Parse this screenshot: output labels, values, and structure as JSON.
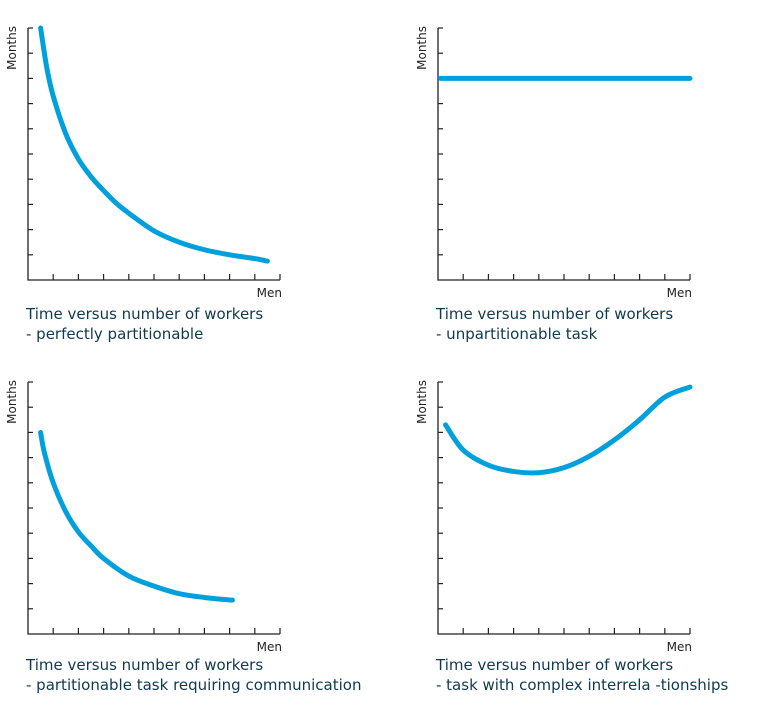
{
  "colors": {
    "curve": "#00a0dc",
    "caption": "#0f3a4f",
    "axis": "#222222"
  },
  "chart_data": [
    {
      "type": "line",
      "title": "Time versus number of workers",
      "subtitle": "- perfectly partitionable",
      "xlabel": "Men",
      "ylabel": "Months",
      "xlim": [
        0,
        10
      ],
      "ylim": [
        0,
        10
      ],
      "x_ticks": 10,
      "y_ticks": 10,
      "series": [
        {
          "x": [
            0.5,
            0.75,
            1,
            1.5,
            2,
            2.5,
            3,
            3.5,
            4,
            5,
            6,
            7,
            8,
            9,
            9.5
          ],
          "y": [
            10,
            8.4,
            7.3,
            5.8,
            4.8,
            4.1,
            3.55,
            3.05,
            2.65,
            1.95,
            1.5,
            1.2,
            1.0,
            0.85,
            0.75
          ]
        }
      ]
    },
    {
      "type": "line",
      "title": "Time versus number of workers",
      "subtitle": "- unpartitionable task",
      "xlabel": "Men",
      "ylabel": "Months",
      "xlim": [
        0,
        10
      ],
      "ylim": [
        0,
        10
      ],
      "x_ticks": 10,
      "y_ticks": 10,
      "series": [
        {
          "x": [
            0.1,
            10
          ],
          "y": [
            8,
            8
          ]
        }
      ]
    },
    {
      "type": "line",
      "title": "Time versus number of workers",
      "subtitle": "- partitionable task requiring communication",
      "xlabel": "Men",
      "ylabel": "Months",
      "xlim": [
        0,
        10
      ],
      "ylim": [
        0,
        10
      ],
      "x_ticks": 10,
      "y_ticks": 10,
      "series": [
        {
          "x": [
            0.5,
            0.65,
            1,
            1.5,
            2,
            2.5,
            3,
            4,
            5,
            6,
            7,
            8,
            8.1
          ],
          "y": [
            8,
            7.2,
            6.0,
            4.85,
            4.05,
            3.5,
            3.0,
            2.3,
            1.9,
            1.6,
            1.45,
            1.35,
            1.35
          ]
        }
      ]
    },
    {
      "type": "line",
      "title": "Time versus number of workers",
      "subtitle": "- task with complex interrela -tionships",
      "xlabel": "Men",
      "ylabel": "Months",
      "xlim": [
        0,
        10
      ],
      "ylim": [
        0,
        10
      ],
      "x_ticks": 10,
      "y_ticks": 10,
      "series": [
        {
          "x": [
            0.3,
            1,
            2,
            3,
            4,
            5,
            6,
            7,
            8,
            9,
            10
          ],
          "y": [
            8.3,
            7.3,
            6.7,
            6.45,
            6.4,
            6.6,
            7.05,
            7.7,
            8.5,
            9.4,
            9.8
          ]
        }
      ]
    }
  ]
}
